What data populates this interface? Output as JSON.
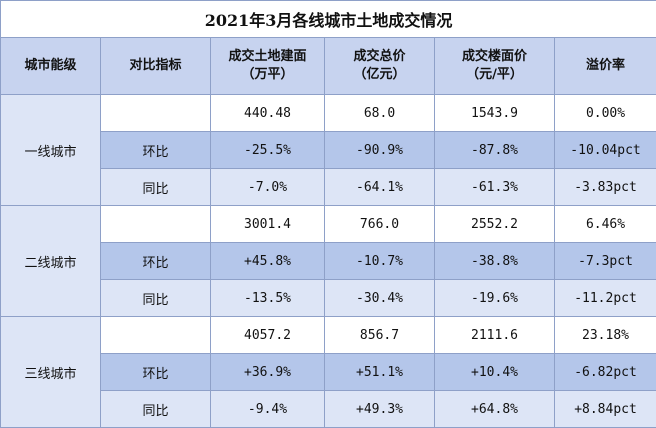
{
  "title": "2021年3月各线城市土地成交情况",
  "headers": {
    "tier": "城市能级",
    "metric": "对比指标",
    "area_1": "成交土地建面",
    "area_2": "（万平）",
    "total_1": "成交总价",
    "total_2": "（亿元）",
    "price_1": "成交楼面价",
    "price_2": "（元/平）",
    "premium": "溢价率"
  },
  "groups": [
    {
      "tier": "一线城市",
      "rows": [
        {
          "metric": "",
          "area": "440.48",
          "total": "68.0",
          "price": "1543.9",
          "premium": "0.00%"
        },
        {
          "metric": "环比",
          "area": "-25.5%",
          "total": "-90.9%",
          "price": "-87.8%",
          "premium": "-10.04pct"
        },
        {
          "metric": "同比",
          "area": "-7.0%",
          "total": "-64.1%",
          "price": "-61.3%",
          "premium": "-3.83pct"
        }
      ]
    },
    {
      "tier": "二线城市",
      "rows": [
        {
          "metric": "",
          "area": "3001.4",
          "total": "766.0",
          "price": "2552.2",
          "premium": "6.46%"
        },
        {
          "metric": "环比",
          "area": "+45.8%",
          "total": "-10.7%",
          "price": "-38.8%",
          "premium": "-7.3pct"
        },
        {
          "metric": "同比",
          "area": "-13.5%",
          "total": "-30.4%",
          "price": "-19.6%",
          "premium": "-11.2pct"
        }
      ]
    },
    {
      "tier": "三线城市",
      "rows": [
        {
          "metric": "",
          "area": "4057.2",
          "total": "856.7",
          "price": "2111.6",
          "premium": "23.18%"
        },
        {
          "metric": "环比",
          "area": "+36.9%",
          "total": "+51.1%",
          "price": "+10.4%",
          "premium": "-6.82pct"
        },
        {
          "metric": "同比",
          "area": "-9.4%",
          "total": "+49.3%",
          "price": "+64.8%",
          "premium": "+8.84pct"
        }
      ]
    }
  ]
}
